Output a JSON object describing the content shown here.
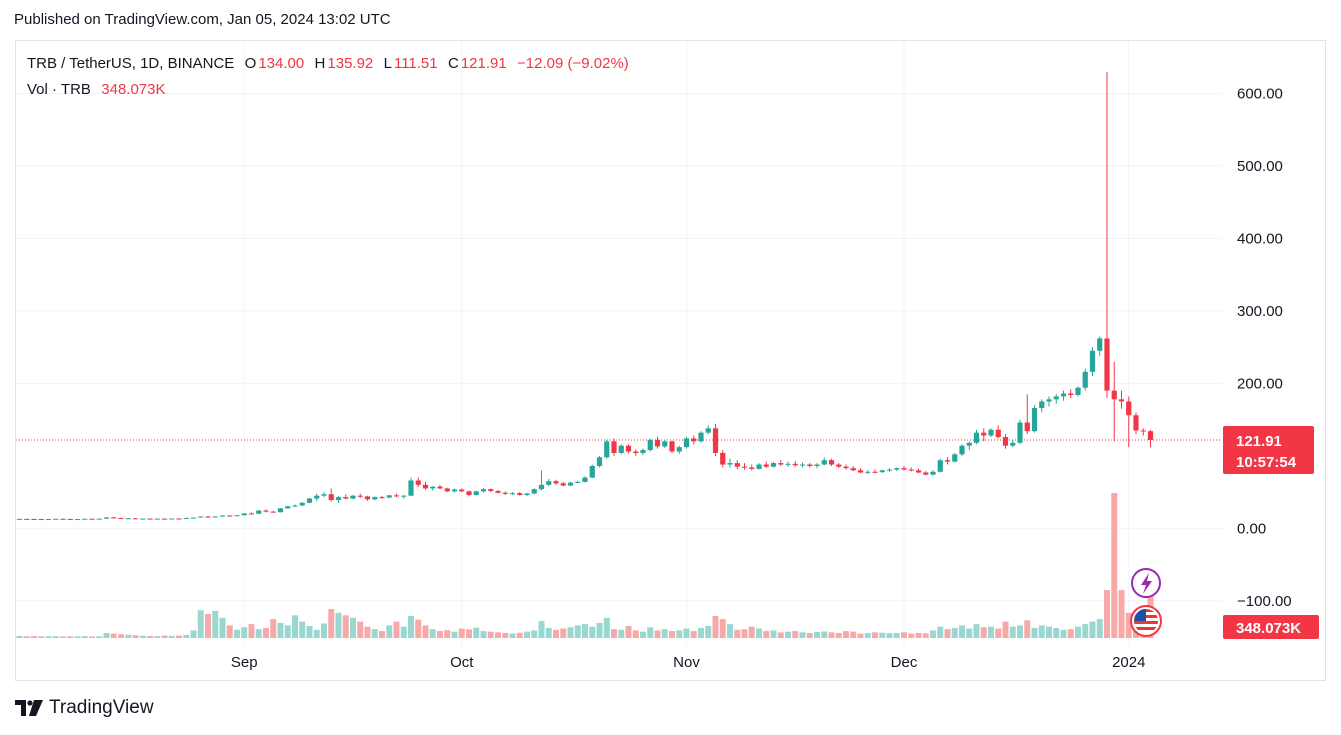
{
  "header": {
    "published": "Published on TradingView.com, Jan 05, 2024 13:02 UTC"
  },
  "legend": {
    "symbol": "TRB / TetherUS, 1D, BINANCE",
    "o_label": "O",
    "o_value": "134.00",
    "h_label": "H",
    "h_value": "135.92",
    "l_label": "L",
    "l_value": "111.51",
    "c_label": "C",
    "c_value": "121.91",
    "change": "−12.09 (−9.02%)",
    "vol_label": "Vol · TRB",
    "vol_value": "348.073K"
  },
  "colors": {
    "up": "#26a69a",
    "down": "#f23645",
    "vol_up": "#9ad7d0",
    "vol_down": "#f7a9a7",
    "grid": "#f0f3fa",
    "text": "#131722"
  },
  "price_badge": {
    "price": "121.91",
    "countdown": "10:57:54"
  },
  "volume_badge": "348.073K",
  "icons": [
    "lightning-icon",
    "us-flag-icon"
  ],
  "footer": {
    "brand": "TradingView"
  },
  "chart_data": {
    "type": "candlestick",
    "symbol": "TRB / TetherUS",
    "interval": "1D",
    "exchange": "BINANCE",
    "y_ticks": [
      "600.00",
      "500.00",
      "400.00",
      "300.00",
      "200.00",
      "0.00",
      "−100.00"
    ],
    "x_ticks": [
      "Sep",
      "Oct",
      "Nov",
      "Dec",
      "2024"
    ],
    "ylim": [
      -150,
      650
    ],
    "start_date": "2023-08-01",
    "end_date": "2024-01-05",
    "last_close": 121.91,
    "candles": [
      [
        12.5,
        13.2,
        12.2,
        13.0
      ],
      [
        13.0,
        13.4,
        12.7,
        12.9
      ],
      [
        12.9,
        13.2,
        12.5,
        12.8
      ],
      [
        12.8,
        13.1,
        12.4,
        12.6
      ],
      [
        12.6,
        13.0,
        12.3,
        12.9
      ],
      [
        12.9,
        13.3,
        12.6,
        13.1
      ],
      [
        13.1,
        13.5,
        12.8,
        12.9
      ],
      [
        12.9,
        13.2,
        12.4,
        12.7
      ],
      [
        12.7,
        13.0,
        12.3,
        12.8
      ],
      [
        12.8,
        13.3,
        12.6,
        13.2
      ],
      [
        13.2,
        13.6,
        12.9,
        13.0
      ],
      [
        13.0,
        13.4,
        12.7,
        13.3
      ],
      [
        13.3,
        15.5,
        13.1,
        15.0
      ],
      [
        15.0,
        15.6,
        13.9,
        14.1
      ],
      [
        14.1,
        14.5,
        13.0,
        13.4
      ],
      [
        13.4,
        14.0,
        13.0,
        13.8
      ],
      [
        13.8,
        14.2,
        13.1,
        13.2
      ],
      [
        13.2,
        13.6,
        12.8,
        13.4
      ],
      [
        13.4,
        13.7,
        12.9,
        13.1
      ],
      [
        13.1,
        13.5,
        12.7,
        13.3
      ],
      [
        13.3,
        13.7,
        12.9,
        13.0
      ],
      [
        13.0,
        13.6,
        12.8,
        13.5
      ],
      [
        13.5,
        14.0,
        13.1,
        13.2
      ],
      [
        13.2,
        14.5,
        13.0,
        14.3
      ],
      [
        14.3,
        15.0,
        13.8,
        14.8
      ],
      [
        14.8,
        16.5,
        14.5,
        16.2
      ],
      [
        16.2,
        17.0,
        15.4,
        15.8
      ],
      [
        15.8,
        16.6,
        15.2,
        16.4
      ],
      [
        16.4,
        18.0,
        16.0,
        17.6
      ],
      [
        17.6,
        18.5,
        17.0,
        17.2
      ],
      [
        17.2,
        18.2,
        16.9,
        18.0
      ],
      [
        18.0,
        21.0,
        17.8,
        20.5
      ],
      [
        20.5,
        22.0,
        19.6,
        20.0
      ],
      [
        20.0,
        25.0,
        19.8,
        24.5
      ],
      [
        24.5,
        26.0,
        22.0,
        23.0
      ],
      [
        23.0,
        24.0,
        21.5,
        22.2
      ],
      [
        22.2,
        28.0,
        22.0,
        27.5
      ],
      [
        27.5,
        31.0,
        27.0,
        30.5
      ],
      [
        30.5,
        33.0,
        29.0,
        31.5
      ],
      [
        31.5,
        36.0,
        31.0,
        35.2
      ],
      [
        35.2,
        42.0,
        34.5,
        41.0
      ],
      [
        41.0,
        48.0,
        38.0,
        45.0
      ],
      [
        45.0,
        50.0,
        43.0,
        47.0
      ],
      [
        47.0,
        55.0,
        37.0,
        39.0
      ],
      [
        39.0,
        45.0,
        35.0,
        43.0
      ],
      [
        43.0,
        47.0,
        40.0,
        41.0
      ],
      [
        41.0,
        46.0,
        40.0,
        45.0
      ],
      [
        45.0,
        48.0,
        42.0,
        44.0
      ],
      [
        44.0,
        45.0,
        38.0,
        40.0
      ],
      [
        40.0,
        44.0,
        38.5,
        43.0
      ],
      [
        43.0,
        45.0,
        41.0,
        42.5
      ],
      [
        42.5,
        46.0,
        41.5,
        45.5
      ],
      [
        45.5,
        48.0,
        43.0,
        44.0
      ],
      [
        44.0,
        46.0,
        41.0,
        45.0
      ],
      [
        45.0,
        70.0,
        44.5,
        66.0
      ],
      [
        66.0,
        70.0,
        57.0,
        60.0
      ],
      [
        60.0,
        64.0,
        53.0,
        55.0
      ],
      [
        55.0,
        58.0,
        52.0,
        57.5
      ],
      [
        57.5,
        60.0,
        54.0,
        55.0
      ],
      [
        55.0,
        56.0,
        50.0,
        51.0
      ],
      [
        51.0,
        55.0,
        49.0,
        53.5
      ],
      [
        53.5,
        55.0,
        50.0,
        51.0
      ],
      [
        51.0,
        52.0,
        44.0,
        46.0
      ],
      [
        46.0,
        52.0,
        45.0,
        51.0
      ],
      [
        51.0,
        56.0,
        49.0,
        54.0
      ],
      [
        54.0,
        55.0,
        50.0,
        51.5
      ],
      [
        51.5,
        53.0,
        48.0,
        49.0
      ],
      [
        49.0,
        51.0,
        46.0,
        47.5
      ],
      [
        47.5,
        50.0,
        46.0,
        48.5
      ],
      [
        48.5,
        50.0,
        45.0,
        46.0
      ],
      [
        46.0,
        49.0,
        44.5,
        48.0
      ],
      [
        48.0,
        55.0,
        47.0,
        54.0
      ],
      [
        54.0,
        80.0,
        52.0,
        60.0
      ],
      [
        60.0,
        68.0,
        58.0,
        65.0
      ],
      [
        65.0,
        67.0,
        60.0,
        62.0
      ],
      [
        62.0,
        64.0,
        58.0,
        59.0
      ],
      [
        59.0,
        64.0,
        58.0,
        63.0
      ],
      [
        63.0,
        66.0,
        62.0,
        64.0
      ],
      [
        64.0,
        72.0,
        63.0,
        70.0
      ],
      [
        70.0,
        88.0,
        69.0,
        86.0
      ],
      [
        86.0,
        100.0,
        84.0,
        98.0
      ],
      [
        98.0,
        122.0,
        96.0,
        120.0
      ],
      [
        120.0,
        124.0,
        100.0,
        104.0
      ],
      [
        104.0,
        116.0,
        102.0,
        114.0
      ],
      [
        114.0,
        116.0,
        103.0,
        106.0
      ],
      [
        106.0,
        109.0,
        100.0,
        104.0
      ],
      [
        104.0,
        110.0,
        101.0,
        108.0
      ],
      [
        108.0,
        124.0,
        106.0,
        122.0
      ],
      [
        122.0,
        126.0,
        110.0,
        113.0
      ],
      [
        113.0,
        122.0,
        111.0,
        120.0
      ],
      [
        120.0,
        121.0,
        104.0,
        106.0
      ],
      [
        106.0,
        114.0,
        103.0,
        112.0
      ],
      [
        112.0,
        126.0,
        110.0,
        124.0
      ],
      [
        124.0,
        128.0,
        116.0,
        120.0
      ],
      [
        120.0,
        134.0,
        118.0,
        132.0
      ],
      [
        132.0,
        142.0,
        130.0,
        138.0
      ],
      [
        138.0,
        144.0,
        100.0,
        104.0
      ],
      [
        104.0,
        108.0,
        84.0,
        88.0
      ],
      [
        88.0,
        96.0,
        84.0,
        90.0
      ],
      [
        90.0,
        94.0,
        82.0,
        85.0
      ],
      [
        85.0,
        90.0,
        81.0,
        84.0
      ],
      [
        84.0,
        88.0,
        80.0,
        82.0
      ],
      [
        82.0,
        90.0,
        81.0,
        88.0
      ],
      [
        88.0,
        92.0,
        83.0,
        85.0
      ],
      [
        85.0,
        92.0,
        84.0,
        90.0
      ],
      [
        90.0,
        94.0,
        86.0,
        88.0
      ],
      [
        88.0,
        92.0,
        85.0,
        89.0
      ],
      [
        89.0,
        93.0,
        85.0,
        87.0
      ],
      [
        87.0,
        91.0,
        84.0,
        88.0
      ],
      [
        88.0,
        90.0,
        84.0,
        86.0
      ],
      [
        86.0,
        90.0,
        83.0,
        88.0
      ],
      [
        88.0,
        98.0,
        87.0,
        94.0
      ],
      [
        94.0,
        96.0,
        86.0,
        88.0
      ],
      [
        88.0,
        90.0,
        83.0,
        85.0
      ],
      [
        85.0,
        88.0,
        81.0,
        83.0
      ],
      [
        83.0,
        86.0,
        79.0,
        80.0
      ],
      [
        80.0,
        83.0,
        76.0,
        77.0
      ],
      [
        77.0,
        80.0,
        75.0,
        78.0
      ],
      [
        78.0,
        81.0,
        76.0,
        77.5
      ],
      [
        77.5,
        81.0,
        76.5,
        80.0
      ],
      [
        80.0,
        83.0,
        78.0,
        81.0
      ],
      [
        81.0,
        84.0,
        79.0,
        83.0
      ],
      [
        83.0,
        86.0,
        80.0,
        81.0
      ],
      [
        81.0,
        84.0,
        78.5,
        80.0
      ],
      [
        80.0,
        82.0,
        76.0,
        77.0
      ],
      [
        77.0,
        79.0,
        73.0,
        74.0
      ],
      [
        74.0,
        80.0,
        73.0,
        78.0
      ],
      [
        78.0,
        96.0,
        77.0,
        94.0
      ],
      [
        94.0,
        98.0,
        88.0,
        92.0
      ],
      [
        92.0,
        104.0,
        91.0,
        102.0
      ],
      [
        102.0,
        116.0,
        100.0,
        114.0
      ],
      [
        114.0,
        120.0,
        108.0,
        118.0
      ],
      [
        118.0,
        136.0,
        116.0,
        132.0
      ],
      [
        132.0,
        138.0,
        120.0,
        128.0
      ],
      [
        128.0,
        138.0,
        126.0,
        136.0
      ],
      [
        136.0,
        142.0,
        124.0,
        126.0
      ],
      [
        126.0,
        130.0,
        110.0,
        114.0
      ],
      [
        114.0,
        122.0,
        112.0,
        118.0
      ],
      [
        118.0,
        150.0,
        116.0,
        146.0
      ],
      [
        146.0,
        185.0,
        130.0,
        134.0
      ],
      [
        134.0,
        170.0,
        132.0,
        166.0
      ],
      [
        166.0,
        178.0,
        160.0,
        175.0
      ],
      [
        175.0,
        182.0,
        168.0,
        178.0
      ],
      [
        178.0,
        185.0,
        172.0,
        182.0
      ],
      [
        182.0,
        190.0,
        176.0,
        186.0
      ],
      [
        186.0,
        192.0,
        180.0,
        184.0
      ],
      [
        184.0,
        196.0,
        182.0,
        194.0
      ],
      [
        194.0,
        220.0,
        190.0,
        216.0
      ],
      [
        216.0,
        250.0,
        210.0,
        245.0
      ],
      [
        245.0,
        265.0,
        238.0,
        262.0
      ],
      [
        262.0,
        630.0,
        180.0,
        190.0
      ],
      [
        190.0,
        230.0,
        120.0,
        178.0
      ],
      [
        178.0,
        190.0,
        165.0,
        175.0
      ],
      [
        175.0,
        182.0,
        112.0,
        156.0
      ],
      [
        156.0,
        160.0,
        130.0,
        135.0
      ],
      [
        135.0,
        138.0,
        128.0,
        134.0
      ],
      [
        134.0,
        135.92,
        111.51,
        121.91
      ]
    ],
    "volume_k": [
      16,
      14,
      15,
      13,
      14,
      15,
      12,
      14,
      13,
      15,
      12,
      14,
      40,
      35,
      30,
      26,
      22,
      18,
      16,
      15,
      20,
      17,
      19,
      25,
      60,
      220,
      190,
      215,
      160,
      100,
      65,
      85,
      110,
      70,
      80,
      150,
      120,
      100,
      180,
      130,
      95,
      65,
      115,
      230,
      200,
      180,
      160,
      130,
      90,
      70,
      55,
      100,
      130,
      90,
      175,
      145,
      100,
      70,
      55,
      62,
      50,
      75,
      68,
      82,
      55,
      50,
      45,
      40,
      35,
      42,
      50,
      60,
      135,
      80,
      65,
      75,
      85,
      100,
      110,
      90,
      120,
      160,
      70,
      65,
      95,
      60,
      50,
      85,
      60,
      70,
      55,
      60,
      75,
      55,
      80,
      95,
      175,
      150,
      110,
      65,
      70,
      90,
      75,
      55,
      60,
      45,
      50,
      55,
      45,
      40,
      48,
      52,
      45,
      40,
      55,
      50,
      35,
      40,
      45,
      42,
      38,
      40,
      45,
      35,
      40,
      38,
      60,
      90,
      70,
      80,
      100,
      75,
      110,
      85,
      90,
      75,
      130,
      90,
      100,
      140,
      80,
      100,
      90,
      80,
      65,
      70,
      90,
      110,
      130,
      150,
      380,
      1150,
      380,
      200,
      170,
      150,
      348.073
    ]
  }
}
